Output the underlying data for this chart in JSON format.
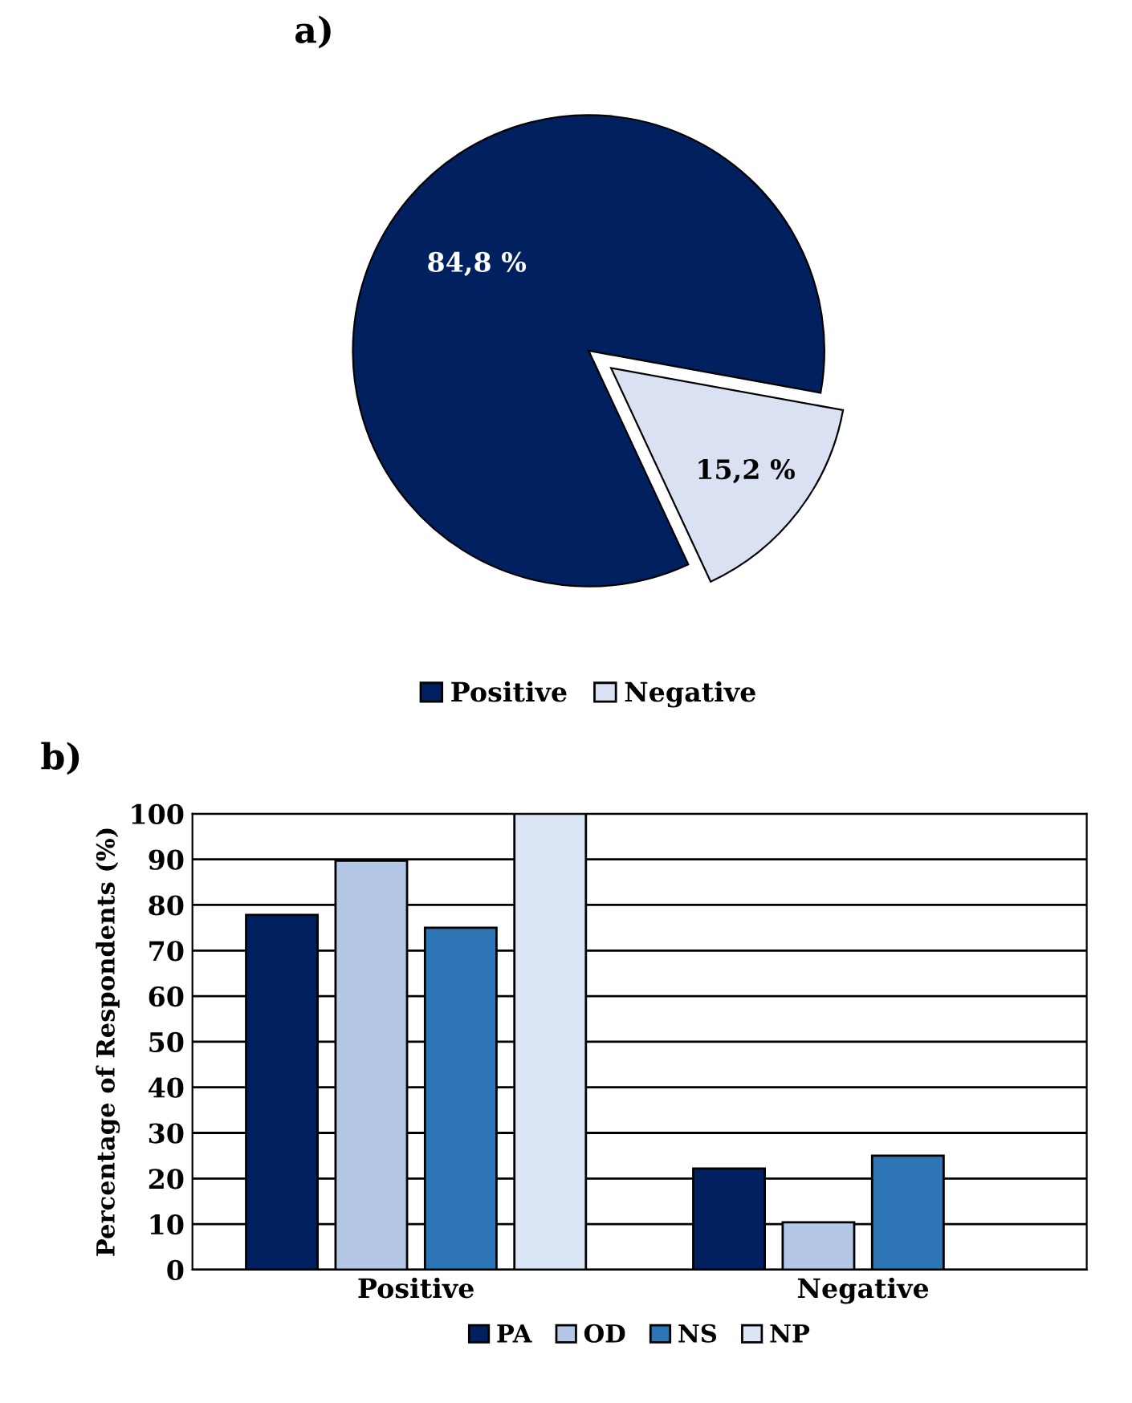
{
  "chart_data": [
    {
      "type": "pie",
      "title": "a)",
      "categories": [
        "Positive",
        "Negative"
      ],
      "values": [
        84.8,
        15.2
      ],
      "colors": [
        "#012060",
        "#d9e1f2"
      ],
      "value_labels": [
        "84,8 %",
        "15,2 %"
      ],
      "legend": "bottom"
    },
    {
      "type": "bar",
      "title": "b)",
      "ylabel": "Percentage of Respondents (%)",
      "categories": [
        "Positive",
        "Negative"
      ],
      "series": [
        {
          "name": "PA",
          "color": "#012060",
          "values": [
            77.8,
            22.2
          ]
        },
        {
          "name": "OD",
          "color": "#b4c7e7",
          "values": [
            89.7,
            10.4
          ]
        },
        {
          "name": "NS",
          "color": "#2e75b6",
          "values": [
            75,
            25
          ]
        },
        {
          "name": "NP",
          "color": "#dae6f5",
          "values": [
            100,
            null
          ]
        }
      ],
      "ylim": [
        0,
        100
      ],
      "yticks": [
        0,
        10,
        20,
        30,
        40,
        50,
        60,
        70,
        80,
        90,
        100
      ],
      "grid": "y",
      "legend": "bottom"
    }
  ]
}
